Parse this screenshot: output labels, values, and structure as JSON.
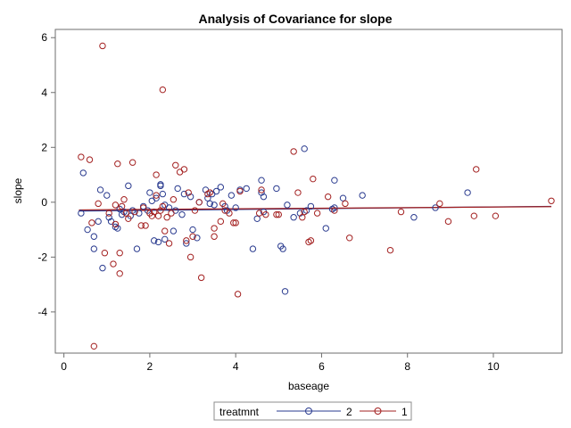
{
  "chart_data": {
    "type": "scatter",
    "title": "Analysis of Covariance for slope",
    "xlabel": "baseage",
    "ylabel": "slope",
    "xlim": [
      -0.2,
      11.6
    ],
    "ylim": [
      -5.5,
      6.3
    ],
    "xticks": [
      0,
      2,
      4,
      6,
      8,
      10
    ],
    "yticks": [
      -4,
      -2,
      0,
      2,
      4,
      6
    ],
    "grid": false,
    "legend_position": "bottom-center",
    "legend_title": "treatmnt",
    "series": [
      {
        "name": "2",
        "color": "#2A3B8F",
        "points": [
          [
            0.4,
            -0.4
          ],
          [
            0.45,
            1.07
          ],
          [
            0.55,
            -1.0
          ],
          [
            0.7,
            -1.7
          ],
          [
            0.7,
            -1.25
          ],
          [
            0.8,
            -0.7
          ],
          [
            0.85,
            0.45
          ],
          [
            0.9,
            -2.4
          ],
          [
            1.0,
            0.25
          ],
          [
            1.05,
            -0.55
          ],
          [
            1.1,
            -0.7
          ],
          [
            1.2,
            -0.9
          ],
          [
            1.25,
            -0.95
          ],
          [
            1.3,
            -0.25
          ],
          [
            1.35,
            -0.45
          ],
          [
            1.4,
            -0.35
          ],
          [
            1.5,
            0.6
          ],
          [
            1.55,
            -0.5
          ],
          [
            1.6,
            -0.3
          ],
          [
            1.7,
            -1.7
          ],
          [
            1.75,
            -0.4
          ],
          [
            1.85,
            -0.15
          ],
          [
            1.95,
            -0.3
          ],
          [
            2.0,
            0.35
          ],
          [
            2.05,
            0.05
          ],
          [
            2.1,
            -1.4
          ],
          [
            2.15,
            0.15
          ],
          [
            2.2,
            -1.45
          ],
          [
            2.25,
            0.65
          ],
          [
            2.25,
            0.6
          ],
          [
            2.3,
            0.3
          ],
          [
            2.35,
            -0.1
          ],
          [
            2.35,
            -1.35
          ],
          [
            2.45,
            -0.2
          ],
          [
            2.55,
            -1.05
          ],
          [
            2.6,
            -0.3
          ],
          [
            2.65,
            0.5
          ],
          [
            2.75,
            -0.45
          ],
          [
            2.8,
            0.3
          ],
          [
            2.85,
            -1.5
          ],
          [
            2.95,
            0.2
          ],
          [
            3.0,
            -1.0
          ],
          [
            3.1,
            -1.3
          ],
          [
            3.15,
            0.0
          ],
          [
            3.3,
            0.45
          ],
          [
            3.35,
            0.15
          ],
          [
            3.4,
            -0.05
          ],
          [
            3.45,
            0.3
          ],
          [
            3.5,
            -0.1
          ],
          [
            3.55,
            0.4
          ],
          [
            3.65,
            0.55
          ],
          [
            3.75,
            -0.15
          ],
          [
            3.8,
            -0.3
          ],
          [
            3.9,
            0.25
          ],
          [
            4.0,
            -0.2
          ],
          [
            4.1,
            0.45
          ],
          [
            4.25,
            0.5
          ],
          [
            4.4,
            -1.7
          ],
          [
            4.5,
            -0.6
          ],
          [
            4.6,
            0.8
          ],
          [
            4.6,
            0.35
          ],
          [
            4.65,
            0.2
          ],
          [
            4.65,
            -0.35
          ],
          [
            4.95,
            0.5
          ],
          [
            5.05,
            -1.6
          ],
          [
            5.1,
            -1.7
          ],
          [
            5.15,
            -3.25
          ],
          [
            5.2,
            -0.1
          ],
          [
            5.35,
            -0.55
          ],
          [
            5.5,
            -0.4
          ],
          [
            5.6,
            1.95
          ],
          [
            5.65,
            -0.3
          ],
          [
            5.75,
            -0.15
          ],
          [
            6.1,
            -0.95
          ],
          [
            6.25,
            -0.25
          ],
          [
            6.3,
            0.8
          ],
          [
            6.3,
            -0.2
          ],
          [
            6.5,
            0.15
          ],
          [
            6.95,
            0.25
          ],
          [
            8.15,
            -0.55
          ],
          [
            8.65,
            -0.2
          ],
          [
            9.4,
            0.35
          ]
        ]
      },
      {
        "name": "1",
        "color": "#A32020",
        "points": [
          [
            0.4,
            1.65
          ],
          [
            0.6,
            1.55
          ],
          [
            0.65,
            -0.75
          ],
          [
            0.7,
            -5.25
          ],
          [
            0.8,
            -0.05
          ],
          [
            0.9,
            5.7
          ],
          [
            0.95,
            -1.85
          ],
          [
            1.05,
            -0.4
          ],
          [
            1.15,
            -2.25
          ],
          [
            1.2,
            -0.1
          ],
          [
            1.2,
            -0.8
          ],
          [
            1.25,
            1.4
          ],
          [
            1.3,
            -1.85
          ],
          [
            1.3,
            -2.6
          ],
          [
            1.35,
            -0.15
          ],
          [
            1.4,
            0.1
          ],
          [
            1.45,
            -0.4
          ],
          [
            1.5,
            -0.6
          ],
          [
            1.6,
            1.45
          ],
          [
            1.65,
            -0.35
          ],
          [
            1.8,
            -0.85
          ],
          [
            1.85,
            -0.2
          ],
          [
            1.9,
            -0.85
          ],
          [
            2.0,
            -0.4
          ],
          [
            2.05,
            -0.5
          ],
          [
            2.1,
            -0.35
          ],
          [
            2.15,
            0.25
          ],
          [
            2.15,
            1.0
          ],
          [
            2.2,
            -0.5
          ],
          [
            2.25,
            -0.3
          ],
          [
            2.3,
            4.1
          ],
          [
            2.3,
            -0.15
          ],
          [
            2.35,
            -1.05
          ],
          [
            2.4,
            -0.55
          ],
          [
            2.45,
            -1.5
          ],
          [
            2.5,
            -0.4
          ],
          [
            2.55,
            0.1
          ],
          [
            2.6,
            1.35
          ],
          [
            2.7,
            1.1
          ],
          [
            2.8,
            1.2
          ],
          [
            2.85,
            -1.4
          ],
          [
            2.9,
            0.35
          ],
          [
            2.95,
            -2.0
          ],
          [
            3.0,
            -1.25
          ],
          [
            3.05,
            -0.3
          ],
          [
            3.15,
            0.0
          ],
          [
            3.2,
            -2.75
          ],
          [
            3.35,
            0.3
          ],
          [
            3.4,
            0.35
          ],
          [
            3.5,
            -0.95
          ],
          [
            3.5,
            -1.25
          ],
          [
            3.65,
            -0.7
          ],
          [
            3.7,
            -0.05
          ],
          [
            3.75,
            -0.3
          ],
          [
            3.85,
            -0.4
          ],
          [
            3.95,
            -0.75
          ],
          [
            4.0,
            -0.75
          ],
          [
            4.05,
            -3.35
          ],
          [
            4.1,
            0.4
          ],
          [
            4.55,
            -0.4
          ],
          [
            4.6,
            0.45
          ],
          [
            4.7,
            -0.45
          ],
          [
            4.95,
            -0.45
          ],
          [
            5.0,
            -0.45
          ],
          [
            5.35,
            1.85
          ],
          [
            5.45,
            0.35
          ],
          [
            5.55,
            -0.55
          ],
          [
            5.6,
            -0.35
          ],
          [
            5.7,
            -1.45
          ],
          [
            5.75,
            -1.4
          ],
          [
            5.8,
            0.85
          ],
          [
            5.9,
            -0.4
          ],
          [
            6.15,
            0.2
          ],
          [
            6.3,
            -0.3
          ],
          [
            6.55,
            -0.05
          ],
          [
            6.65,
            -1.3
          ],
          [
            7.6,
            -1.75
          ],
          [
            7.85,
            -0.35
          ],
          [
            8.75,
            -0.05
          ],
          [
            8.95,
            -0.7
          ],
          [
            9.55,
            -0.5
          ],
          [
            9.6,
            1.2
          ],
          [
            10.05,
            -0.5
          ],
          [
            11.35,
            0.05
          ]
        ]
      }
    ],
    "fit_lines": [
      {
        "series": "2",
        "x": [
          0.35,
          11.35
        ],
        "y": [
          -0.32,
          -0.15
        ]
      },
      {
        "series": "1",
        "x": [
          0.35,
          11.35
        ],
        "y": [
          -0.28,
          -0.16
        ]
      }
    ]
  }
}
